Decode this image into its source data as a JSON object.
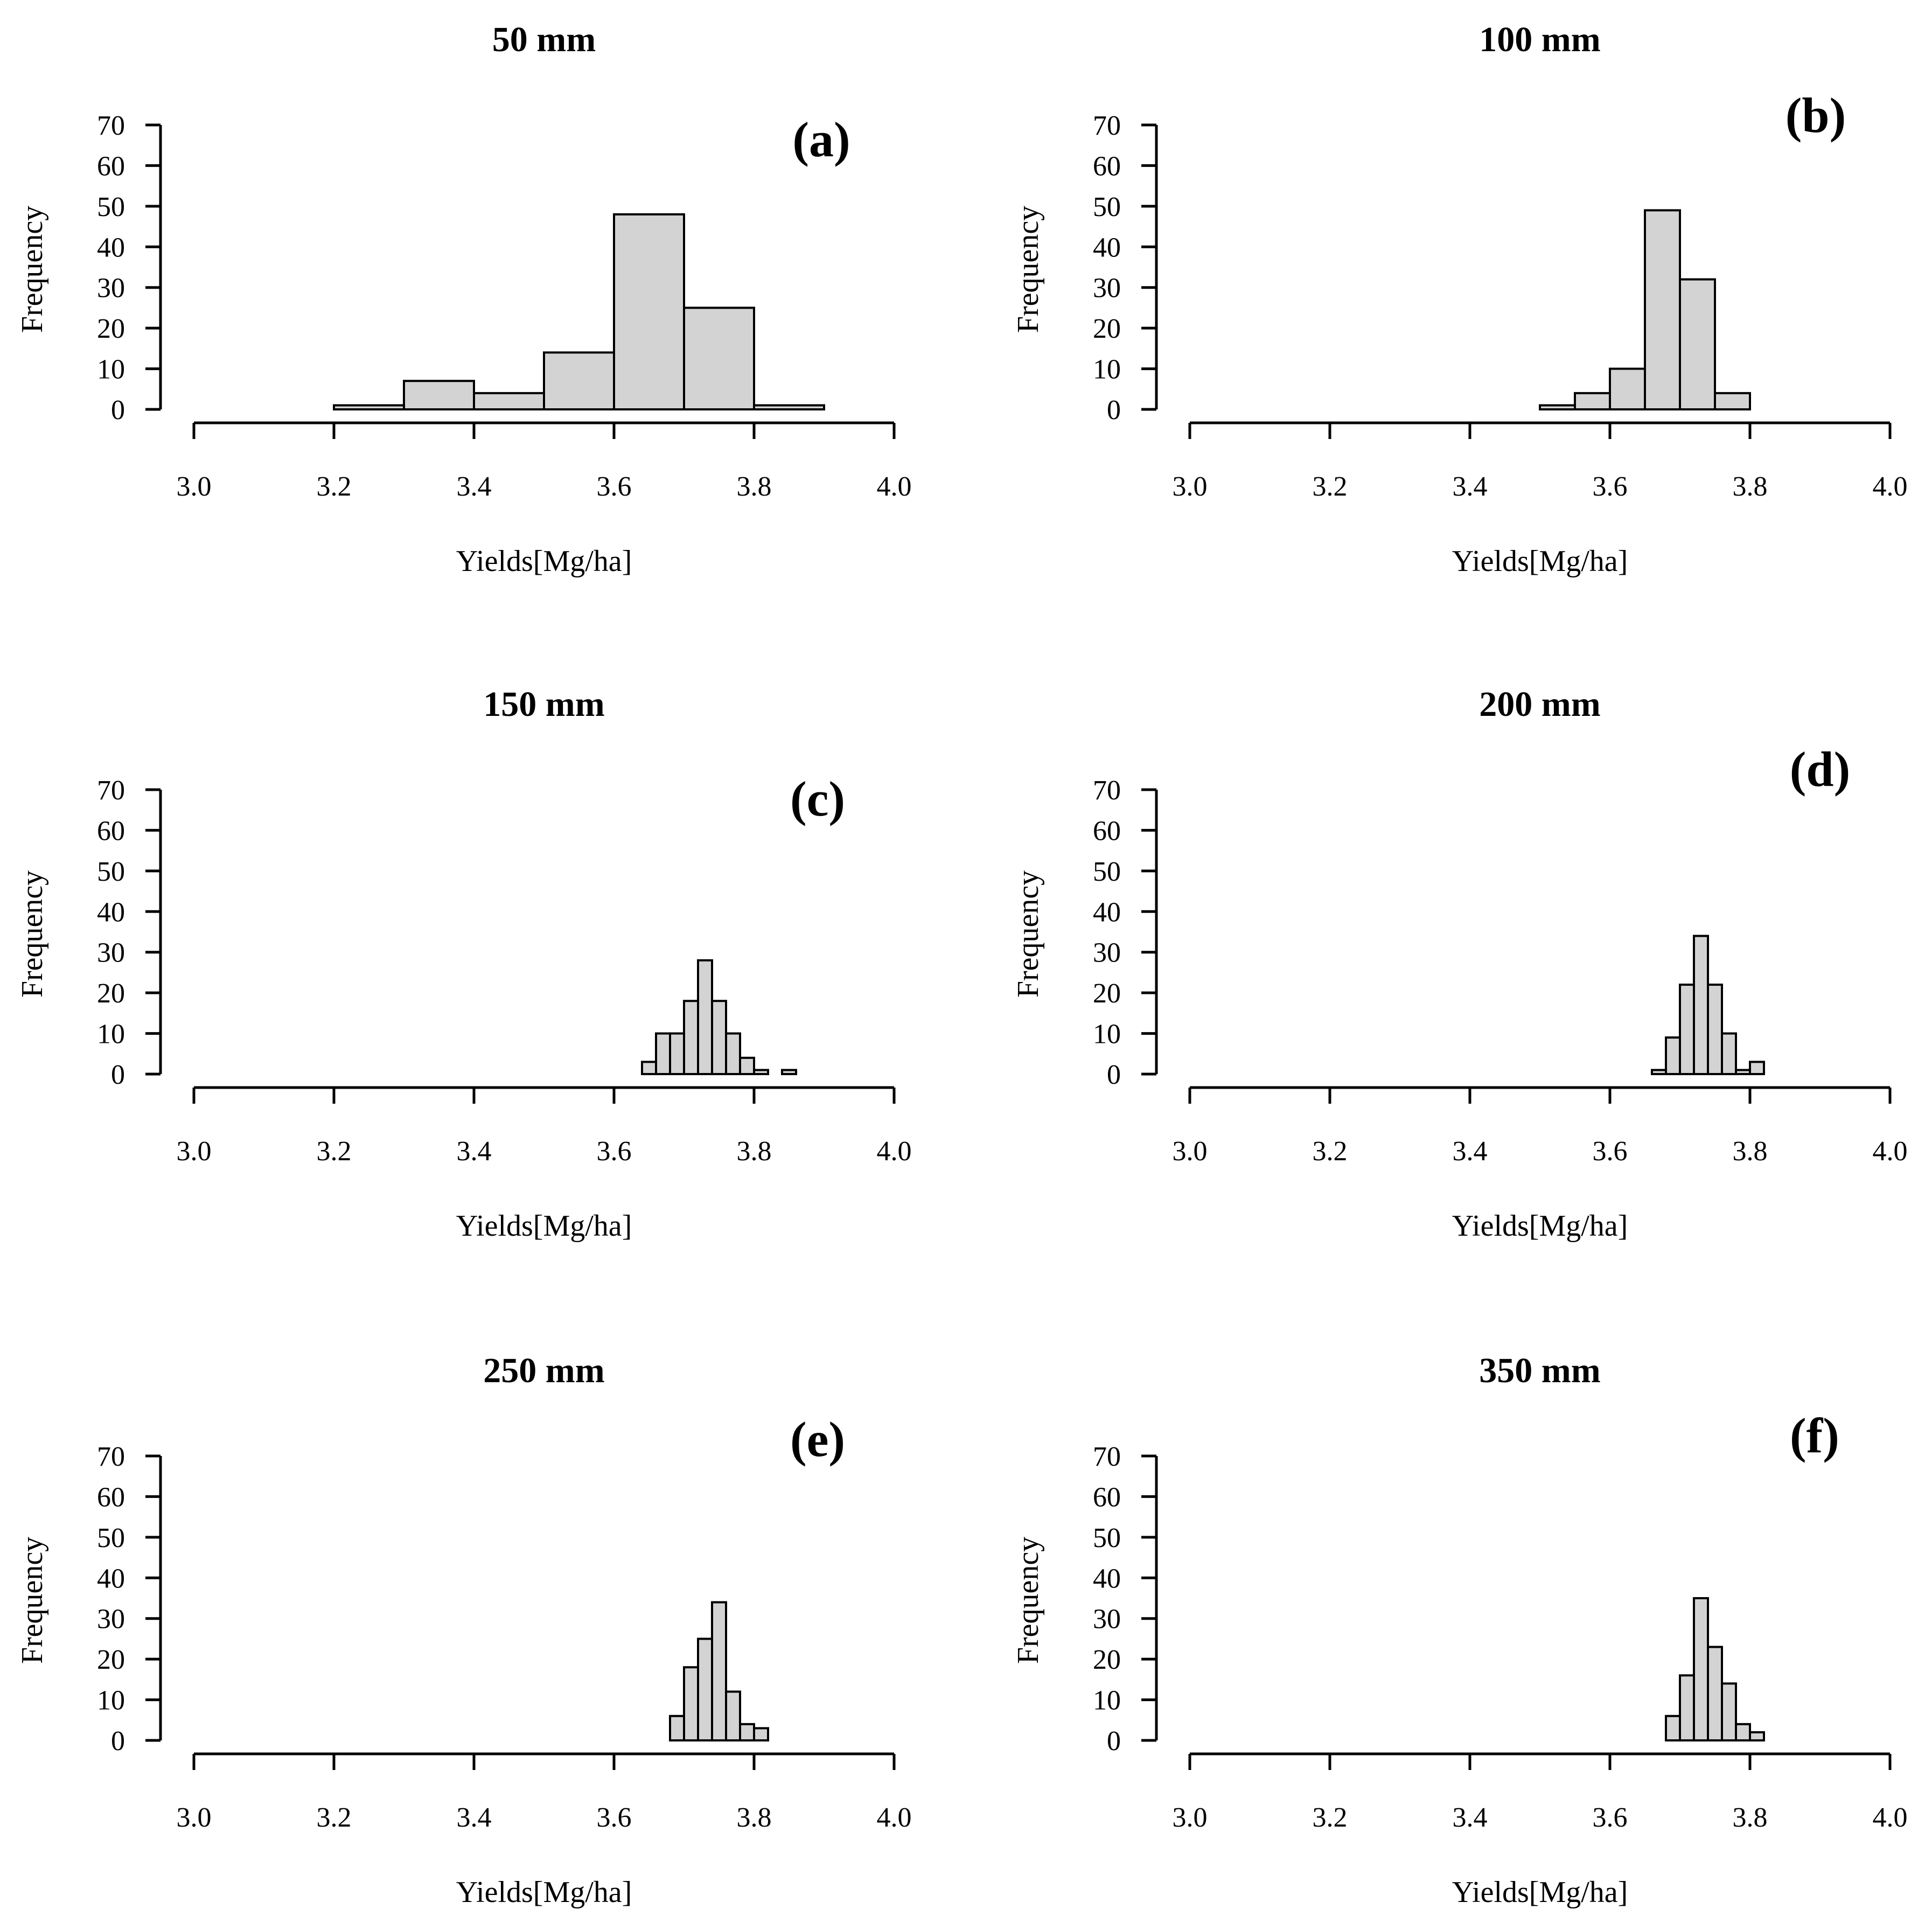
{
  "chart_data": [
    {
      "id": "a",
      "type": "histogram",
      "title": "50 mm",
      "panel_label": "(a)",
      "xlabel": "Yields[Mg/ha]",
      "ylabel": "Frequency",
      "xlim": [
        3.0,
        4.0
      ],
      "ylim": [
        0,
        70
      ],
      "xticks": [
        "3.0",
        "3.2",
        "3.4",
        "3.6",
        "3.8",
        "4.0"
      ],
      "yticks": [
        "0",
        "10",
        "20",
        "30",
        "40",
        "50",
        "60",
        "70"
      ],
      "bins": [
        {
          "x0": 3.2,
          "x1": 3.3,
          "count": 1
        },
        {
          "x0": 3.3,
          "x1": 3.4,
          "count": 7
        },
        {
          "x0": 3.4,
          "x1": 3.5,
          "count": 4
        },
        {
          "x0": 3.5,
          "x1": 3.6,
          "count": 14
        },
        {
          "x0": 3.6,
          "x1": 3.7,
          "count": 48
        },
        {
          "x0": 3.7,
          "x1": 3.8,
          "count": 25
        },
        {
          "x0": 3.8,
          "x1": 3.9,
          "count": 1
        }
      ]
    },
    {
      "id": "b",
      "type": "histogram",
      "title": "100 mm",
      "panel_label": "(b)",
      "xlabel": "Yields[Mg/ha]",
      "ylabel": "Frequency",
      "xlim": [
        3.0,
        4.0
      ],
      "ylim": [
        0,
        70
      ],
      "xticks": [
        "3.0",
        "3.2",
        "3.4",
        "3.6",
        "3.8",
        "4.0"
      ],
      "yticks": [
        "0",
        "10",
        "20",
        "30",
        "40",
        "50",
        "60",
        "70"
      ],
      "bins": [
        {
          "x0": 3.5,
          "x1": 3.55,
          "count": 1
        },
        {
          "x0": 3.55,
          "x1": 3.6,
          "count": 4
        },
        {
          "x0": 3.6,
          "x1": 3.65,
          "count": 10
        },
        {
          "x0": 3.65,
          "x1": 3.7,
          "count": 49
        },
        {
          "x0": 3.7,
          "x1": 3.75,
          "count": 32
        },
        {
          "x0": 3.75,
          "x1": 3.8,
          "count": 4
        }
      ]
    },
    {
      "id": "c",
      "type": "histogram",
      "title": "150 mm",
      "panel_label": "(c)",
      "xlabel": "Yields[Mg/ha]",
      "ylabel": "Frequency",
      "xlim": [
        3.0,
        4.0
      ],
      "ylim": [
        0,
        70
      ],
      "xticks": [
        "3.0",
        "3.2",
        "3.4",
        "3.6",
        "3.8",
        "4.0"
      ],
      "yticks": [
        "0",
        "10",
        "20",
        "30",
        "40",
        "50",
        "60",
        "70"
      ],
      "bins": [
        {
          "x0": 3.64,
          "x1": 3.66,
          "count": 3
        },
        {
          "x0": 3.66,
          "x1": 3.68,
          "count": 10
        },
        {
          "x0": 3.68,
          "x1": 3.7,
          "count": 10
        },
        {
          "x0": 3.7,
          "x1": 3.72,
          "count": 18
        },
        {
          "x0": 3.72,
          "x1": 3.74,
          "count": 28
        },
        {
          "x0": 3.74,
          "x1": 3.76,
          "count": 18
        },
        {
          "x0": 3.76,
          "x1": 3.78,
          "count": 10
        },
        {
          "x0": 3.78,
          "x1": 3.8,
          "count": 4
        },
        {
          "x0": 3.8,
          "x1": 3.82,
          "count": 1
        },
        {
          "x0": 3.82,
          "x1": 3.84,
          "count": 0
        },
        {
          "x0": 3.84,
          "x1": 3.86,
          "count": 1
        }
      ]
    },
    {
      "id": "d",
      "type": "histogram",
      "title": "200 mm",
      "panel_label": "(d)",
      "xlabel": "Yields[Mg/ha]",
      "ylabel": "Frequency",
      "xlim": [
        3.0,
        4.0
      ],
      "ylim": [
        0,
        70
      ],
      "xticks": [
        "3.0",
        "3.2",
        "3.4",
        "3.6",
        "3.8",
        "4.0"
      ],
      "yticks": [
        "0",
        "10",
        "20",
        "30",
        "40",
        "50",
        "60",
        "70"
      ],
      "bins": [
        {
          "x0": 3.66,
          "x1": 3.68,
          "count": 1
        },
        {
          "x0": 3.68,
          "x1": 3.7,
          "count": 9
        },
        {
          "x0": 3.7,
          "x1": 3.72,
          "count": 22
        },
        {
          "x0": 3.72,
          "x1": 3.74,
          "count": 34
        },
        {
          "x0": 3.74,
          "x1": 3.76,
          "count": 22
        },
        {
          "x0": 3.76,
          "x1": 3.78,
          "count": 10
        },
        {
          "x0": 3.78,
          "x1": 3.8,
          "count": 1
        },
        {
          "x0": 3.8,
          "x1": 3.82,
          "count": 3
        }
      ]
    },
    {
      "id": "e",
      "type": "histogram",
      "title": "250 mm",
      "panel_label": "(e)",
      "xlabel": "Yields[Mg/ha]",
      "ylabel": "Frequency",
      "xlim": [
        3.0,
        4.0
      ],
      "ylim": [
        0,
        70
      ],
      "xticks": [
        "3.0",
        "3.2",
        "3.4",
        "3.6",
        "3.8",
        "4.0"
      ],
      "yticks": [
        "0",
        "10",
        "20",
        "30",
        "40",
        "50",
        "60",
        "70"
      ],
      "bins": [
        {
          "x0": 3.68,
          "x1": 3.7,
          "count": 6
        },
        {
          "x0": 3.7,
          "x1": 3.72,
          "count": 18
        },
        {
          "x0": 3.72,
          "x1": 3.74,
          "count": 25
        },
        {
          "x0": 3.74,
          "x1": 3.76,
          "count": 34
        },
        {
          "x0": 3.76,
          "x1": 3.78,
          "count": 12
        },
        {
          "x0": 3.78,
          "x1": 3.8,
          "count": 4
        },
        {
          "x0": 3.8,
          "x1": 3.82,
          "count": 3
        }
      ]
    },
    {
      "id": "f",
      "type": "histogram",
      "title": "350 mm",
      "panel_label": "(f)",
      "xlabel": "Yields[Mg/ha]",
      "ylabel": "Frequency",
      "xlim": [
        3.0,
        4.0
      ],
      "ylim": [
        0,
        70
      ],
      "xticks": [
        "3.0",
        "3.2",
        "3.4",
        "3.6",
        "3.8",
        "4.0"
      ],
      "yticks": [
        "0",
        "10",
        "20",
        "30",
        "40",
        "50",
        "60",
        "70"
      ],
      "bins": [
        {
          "x0": 3.68,
          "x1": 3.7,
          "count": 6
        },
        {
          "x0": 3.7,
          "x1": 3.72,
          "count": 16
        },
        {
          "x0": 3.72,
          "x1": 3.74,
          "count": 35
        },
        {
          "x0": 3.74,
          "x1": 3.76,
          "count": 23
        },
        {
          "x0": 3.76,
          "x1": 3.78,
          "count": 14
        },
        {
          "x0": 3.78,
          "x1": 3.8,
          "count": 4
        },
        {
          "x0": 3.8,
          "x1": 3.82,
          "count": 2
        }
      ]
    }
  ]
}
